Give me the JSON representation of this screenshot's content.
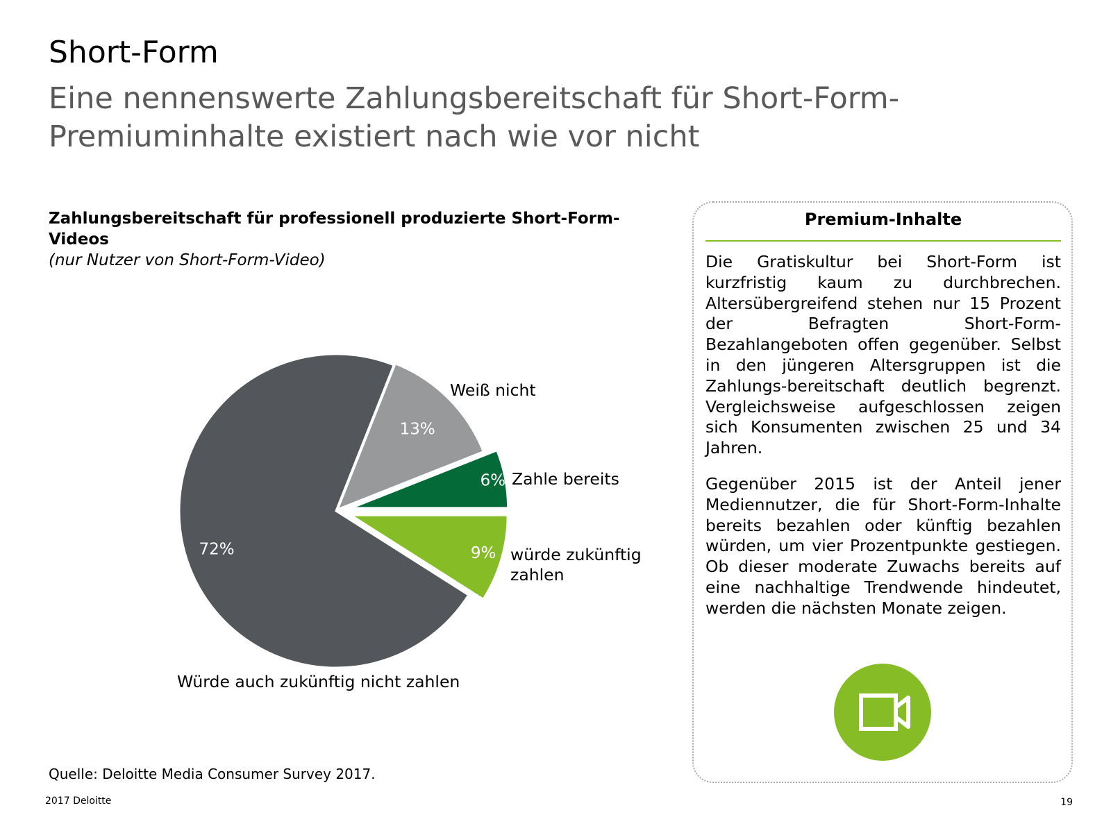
{
  "header": {
    "title": "Short-Form",
    "subtitle": "Eine nennenswerte Zahlungsbereitschaft für Short-Form-Premiuminhalte existiert nach wie vor nicht"
  },
  "chart_data": {
    "type": "pie",
    "title": "Zahlungsbereitschaft für professionell produzierte Short-Form-Videos",
    "subtitle": "(nur Nutzer von Short-Form-Video)",
    "categories": [
      "würde zukünftig zahlen",
      "Würde auch zukünftig nicht zahlen",
      "Weiß nicht",
      "Zahle bereits"
    ],
    "values": [
      9,
      72,
      13,
      6
    ],
    "value_labels": [
      "9%",
      "72%",
      "13%",
      "6%"
    ],
    "colors": [
      "#86bc25",
      "#53565a",
      "#97999b",
      "#046a38"
    ]
  },
  "source": "Quelle: Deloitte Media Consumer Survey 2017.",
  "panel": {
    "title": "Premium-Inhalte",
    "paragraphs": [
      "Die Gratiskultur bei Short-Form ist kurzfristig kaum zu durchbrechen. Altersübergreifend stehen nur 15 Prozent der Befragten Short-Form-Bezahlangeboten offen gegenüber. Selbst in den jüngeren Altersgruppen ist die Zahlungs-bereitschaft deutlich begrenzt. Vergleichsweise aufgeschlossen zeigen sich Konsumenten zwischen 25 und 34 Jahren.",
      "Gegenüber 2015 ist der Anteil jener Mediennutzer, die für Short-Form-Inhalte bereits bezahlen oder künftig bezahlen würden, um vier Prozentpunkte gestiegen. Ob dieser moderate Zuwachs bereits auf eine nachhaltige Trendwende hindeutet, werden die nächsten Monate zeigen."
    ]
  },
  "footer": {
    "copyright": "2017 Deloitte",
    "page": "19"
  }
}
